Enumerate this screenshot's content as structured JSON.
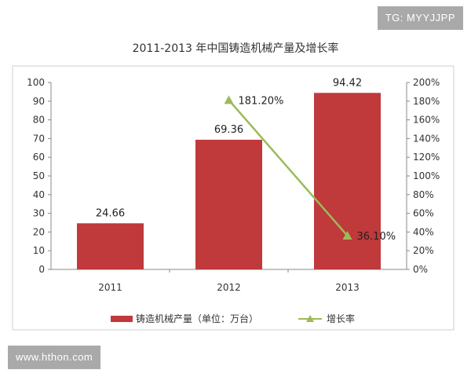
{
  "watermarks": {
    "top_right": "TG: MYYJJPP",
    "bottom_left": "www.hthon.com"
  },
  "chart_data": {
    "type": "bar",
    "title": "2011-2013 年中国铸造机械产量及增长率",
    "categories": [
      "2011",
      "2012",
      "2013"
    ],
    "ylim": [
      0,
      100
    ],
    "y_ticks": [
      "0",
      "10",
      "20",
      "30",
      "40",
      "50",
      "60",
      "70",
      "80",
      "90",
      "100"
    ],
    "y2lim": [
      0,
      200
    ],
    "y2_ticks": [
      "0%",
      "20%",
      "40%",
      "60%",
      "80%",
      "100%",
      "120%",
      "140%",
      "160%",
      "180%",
      "200%"
    ],
    "grid": false,
    "legend_position": "bottom",
    "series": [
      {
        "name": "铸造机械产量（单位：万台）",
        "type": "bar",
        "axis": "left",
        "color": "#c0393b",
        "values": [
          24.66,
          69.36,
          94.42
        ],
        "labels": [
          "24.66",
          "69.36",
          "94.42"
        ]
      },
      {
        "name": "增长率",
        "type": "line",
        "axis": "right",
        "color": "#9bbb59",
        "x": [
          "2012",
          "2013"
        ],
        "values": [
          181.2,
          36.1
        ],
        "labels": [
          "181.20%",
          "36.10%"
        ]
      }
    ]
  }
}
